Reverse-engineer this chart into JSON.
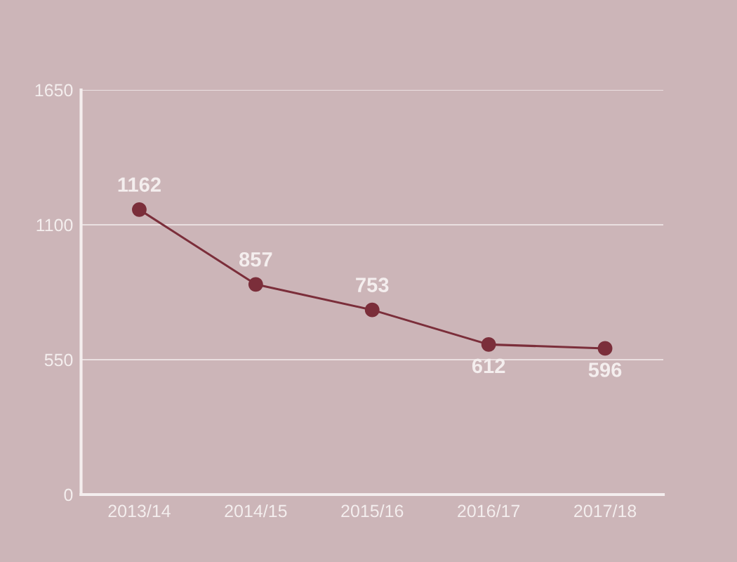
{
  "chart_data": {
    "type": "line",
    "categories": [
      "2013/14",
      "2014/15",
      "2015/16",
      "2016/17",
      "2017/18"
    ],
    "series": [
      {
        "color": "#7b2e3a",
        "values": [
          1162,
          857,
          753,
          612,
          596
        ]
      }
    ],
    "ylim": [
      0,
      1650
    ],
    "yticks": [
      0,
      550,
      1100,
      1650
    ],
    "grid": "y",
    "marker": "circle",
    "line_style": "solid",
    "data_labels": true
  }
}
